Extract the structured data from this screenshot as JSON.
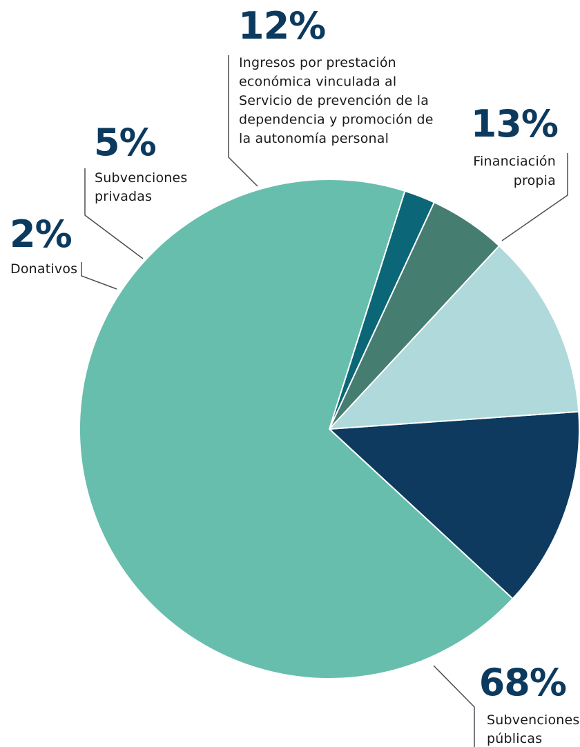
{
  "colors": {
    "text_dark": "#0c3a5e",
    "label_text": "#1a1a1a",
    "leader": "#4a4f55",
    "slice_border": "#ffffff"
  },
  "chart_data": {
    "type": "pie",
    "title": "",
    "slices": [
      {
        "key": "financiacion",
        "value": 13,
        "percent_label": "13%",
        "label_lines": [
          "Financiación",
          "propia"
        ],
        "color": "#0e3a5f"
      },
      {
        "key": "publicas",
        "value": 68,
        "percent_label": "68%",
        "label_lines": [
          "Subvenciones",
          "públicas"
        ],
        "color": "#67bead"
      },
      {
        "key": "donativos",
        "value": 2,
        "percent_label": "2%",
        "label_lines": [
          "Donativos"
        ],
        "color": "#0b6677"
      },
      {
        "key": "privadas",
        "value": 5,
        "percent_label": "5%",
        "label_lines": [
          "Subvenciones",
          "privadas"
        ],
        "color": "#457d71"
      },
      {
        "key": "ingresos",
        "value": 12,
        "percent_label": "12%",
        "label_lines": [
          "Ingresos por prestación",
          "económica vinculada al",
          "Servicio de prevención de la",
          "dependencia y promoción de",
          "la autonomía personal"
        ],
        "color": "#afd9da"
      }
    ]
  }
}
